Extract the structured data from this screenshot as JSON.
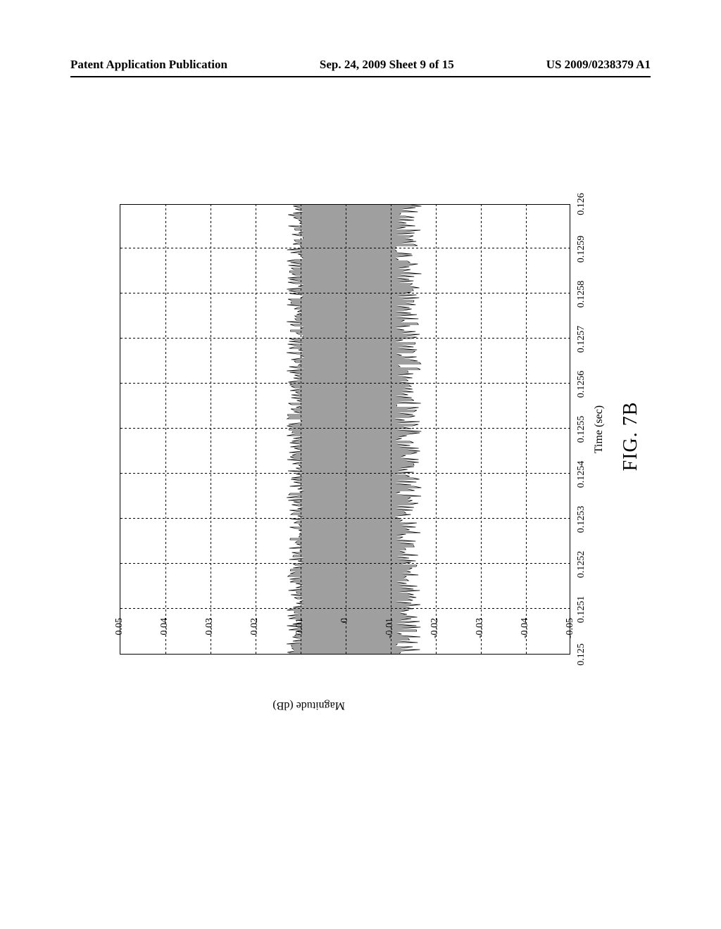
{
  "header": {
    "left": "Patent Application Publication",
    "center": "Sep. 24, 2009  Sheet 9 of 15",
    "right": "US 2009/0238379 A1"
  },
  "figure": {
    "caption": "FIG. 7B",
    "ylabel": "Magnitude (dB)",
    "xlabel": "Time (sec)",
    "type": "line",
    "yticks": [
      {
        "label": "0.05",
        "value": 0.05
      },
      {
        "label": "0.04",
        "value": 0.04
      },
      {
        "label": "0.03",
        "value": 0.03
      },
      {
        "label": "0.02",
        "value": 0.02
      },
      {
        "label": "0.01",
        "value": 0.01
      },
      {
        "label": "0",
        "value": 0.0
      },
      {
        "label": "-0.01",
        "value": -0.01
      },
      {
        "label": "-0.02",
        "value": -0.02
      },
      {
        "label": "-0.03",
        "value": -0.03
      },
      {
        "label": "-0.04",
        "value": -0.04
      },
      {
        "label": "-0.05",
        "value": -0.05
      }
    ],
    "xticks": [
      {
        "label": "0.125",
        "value": 0.125
      },
      {
        "label": "0.1251",
        "value": 0.1251
      },
      {
        "label": "0.1252",
        "value": 0.1252
      },
      {
        "label": "0.1253",
        "value": 0.1253
      },
      {
        "label": "0.1254",
        "value": 0.1254
      },
      {
        "label": "0.1255",
        "value": 0.1255
      },
      {
        "label": "0.1256",
        "value": 0.1256
      },
      {
        "label": "0.1257",
        "value": 0.1257
      },
      {
        "label": "0.1258",
        "value": 0.1258
      },
      {
        "label": "0.1259",
        "value": 0.1259
      },
      {
        "label": "0.126",
        "value": 0.126
      }
    ],
    "ylim": [
      -0.05,
      0.05
    ],
    "xlim": [
      0.125,
      0.126
    ],
    "line_color": "#000000",
    "line_width": 0.7,
    "grid_color": "#000000",
    "background_color": "#ffffff",
    "waveform": {
      "cycles": 160,
      "pos_peak": 0.011,
      "neg_peak": -0.014,
      "jitter_pos": 0.002,
      "jitter_neg": 0.003
    }
  }
}
